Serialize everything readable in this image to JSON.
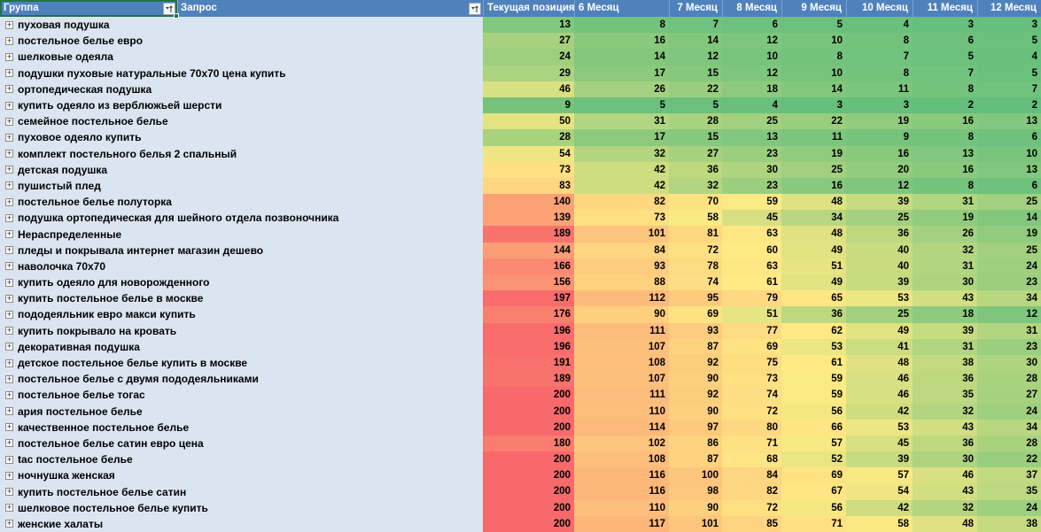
{
  "header": {
    "group_label": "Группа",
    "query_label": "Запрос",
    "months": [
      "Текущая позиция",
      "6 Месяц",
      "7 Месяц",
      "8 Месяц",
      "9 Месяц",
      "10 Месяц",
      "11 Месяц",
      "12 Месяц"
    ]
  },
  "heatmap": {
    "min_value": 2,
    "mid_value": 60,
    "max_value": 200,
    "min_color": "#63BE7B",
    "mid_color": "#FFEB84",
    "max_color": "#F8696B"
  },
  "colors": {
    "header_bg": "#4F81BD",
    "row_bg": "#DBE5F1",
    "selection_border": "#217346"
  },
  "icons": {
    "filter": "filter-sort-icon",
    "expand": "plus-box-expand-icon"
  },
  "rows": [
    {
      "label": "пуховая подушка",
      "values": [
        13,
        8,
        7,
        6,
        5,
        4,
        3,
        3
      ]
    },
    {
      "label": "постельное белье евро",
      "values": [
        27,
        16,
        14,
        12,
        10,
        8,
        6,
        5
      ]
    },
    {
      "label": "шелковые одеяла",
      "values": [
        24,
        14,
        12,
        10,
        8,
        7,
        5,
        4
      ]
    },
    {
      "label": "подушки пуховые натуральные 70х70 цена купить",
      "values": [
        29,
        17,
        15,
        12,
        10,
        8,
        7,
        5
      ]
    },
    {
      "label": "ортопедическая подушка",
      "values": [
        46,
        26,
        22,
        18,
        14,
        11,
        8,
        7
      ]
    },
    {
      "label": "купить одеяло из верблюжьей шерсти",
      "values": [
        9,
        5,
        5,
        4,
        3,
        3,
        2,
        2
      ]
    },
    {
      "label": "семейное постельное белье",
      "values": [
        50,
        31,
        28,
        25,
        22,
        19,
        16,
        13
      ]
    },
    {
      "label": "пуховое одеяло купить",
      "values": [
        28,
        17,
        15,
        13,
        11,
        9,
        8,
        6
      ]
    },
    {
      "label": "комплект постельного белья 2 спальный",
      "values": [
        54,
        32,
        27,
        23,
        19,
        16,
        13,
        10
      ]
    },
    {
      "label": "детская подушка",
      "values": [
        73,
        42,
        36,
        30,
        25,
        20,
        16,
        13
      ]
    },
    {
      "label": "пушистый плед",
      "values": [
        83,
        42,
        32,
        23,
        16,
        12,
        8,
        6
      ]
    },
    {
      "label": "постельное белье полуторка",
      "values": [
        140,
        82,
        70,
        59,
        48,
        39,
        31,
        25
      ]
    },
    {
      "label": "подушка ортопедическая для шейного отдела позвоночника",
      "values": [
        139,
        73,
        58,
        45,
        34,
        25,
        19,
        14
      ]
    },
    {
      "label": "Нераспределенные",
      "values": [
        189,
        101,
        81,
        63,
        48,
        36,
        26,
        19
      ]
    },
    {
      "label": "пледы и покрывала интернет магазин дешево",
      "values": [
        144,
        84,
        72,
        60,
        49,
        40,
        32,
        25
      ]
    },
    {
      "label": "наволочка 70х70",
      "values": [
        166,
        93,
        78,
        63,
        51,
        40,
        31,
        24
      ]
    },
    {
      "label": "купить одеяло для новорожденного",
      "values": [
        156,
        88,
        74,
        61,
        49,
        39,
        30,
        23
      ]
    },
    {
      "label": "купить постельное белье в москве",
      "values": [
        197,
        112,
        95,
        79,
        65,
        53,
        43,
        34
      ]
    },
    {
      "label": "пододеяльник евро макси купить",
      "values": [
        176,
        90,
        69,
        51,
        36,
        25,
        18,
        12
      ]
    },
    {
      "label": "купить покрывало на кровать",
      "values": [
        196,
        111,
        93,
        77,
        62,
        49,
        39,
        31
      ]
    },
    {
      "label": "декоративная подушка",
      "values": [
        196,
        107,
        87,
        69,
        53,
        41,
        31,
        23
      ]
    },
    {
      "label": "детское постельное белье купить в москве",
      "values": [
        191,
        108,
        92,
        75,
        61,
        48,
        38,
        30
      ]
    },
    {
      "label": "постельное белье с двумя пододеяльниками",
      "values": [
        189,
        107,
        90,
        73,
        59,
        46,
        36,
        28
      ]
    },
    {
      "label": "постельное белье тогас",
      "values": [
        200,
        111,
        92,
        74,
        59,
        46,
        35,
        27
      ]
    },
    {
      "label": "ария постельное белье",
      "values": [
        200,
        110,
        90,
        72,
        56,
        42,
        32,
        24
      ]
    },
    {
      "label": "качественное постельное белье",
      "values": [
        200,
        114,
        97,
        80,
        66,
        53,
        43,
        34
      ]
    },
    {
      "label": "постельное белье сатин евро цена",
      "values": [
        180,
        102,
        86,
        71,
        57,
        45,
        36,
        28
      ]
    },
    {
      "label": "tac постельное белье",
      "values": [
        200,
        108,
        87,
        68,
        52,
        39,
        30,
        22
      ]
    },
    {
      "label": "ночнушка женская",
      "values": [
        200,
        116,
        100,
        84,
        69,
        57,
        46,
        37
      ]
    },
    {
      "label": "купить постельное белье сатин",
      "values": [
        200,
        116,
        98,
        82,
        67,
        54,
        43,
        35
      ]
    },
    {
      "label": "шелковое постельное белье купить",
      "values": [
        200,
        110,
        90,
        72,
        56,
        42,
        32,
        24
      ]
    },
    {
      "label": "женские халаты",
      "values": [
        200,
        117,
        101,
        85,
        71,
        58,
        48,
        38
      ]
    }
  ]
}
